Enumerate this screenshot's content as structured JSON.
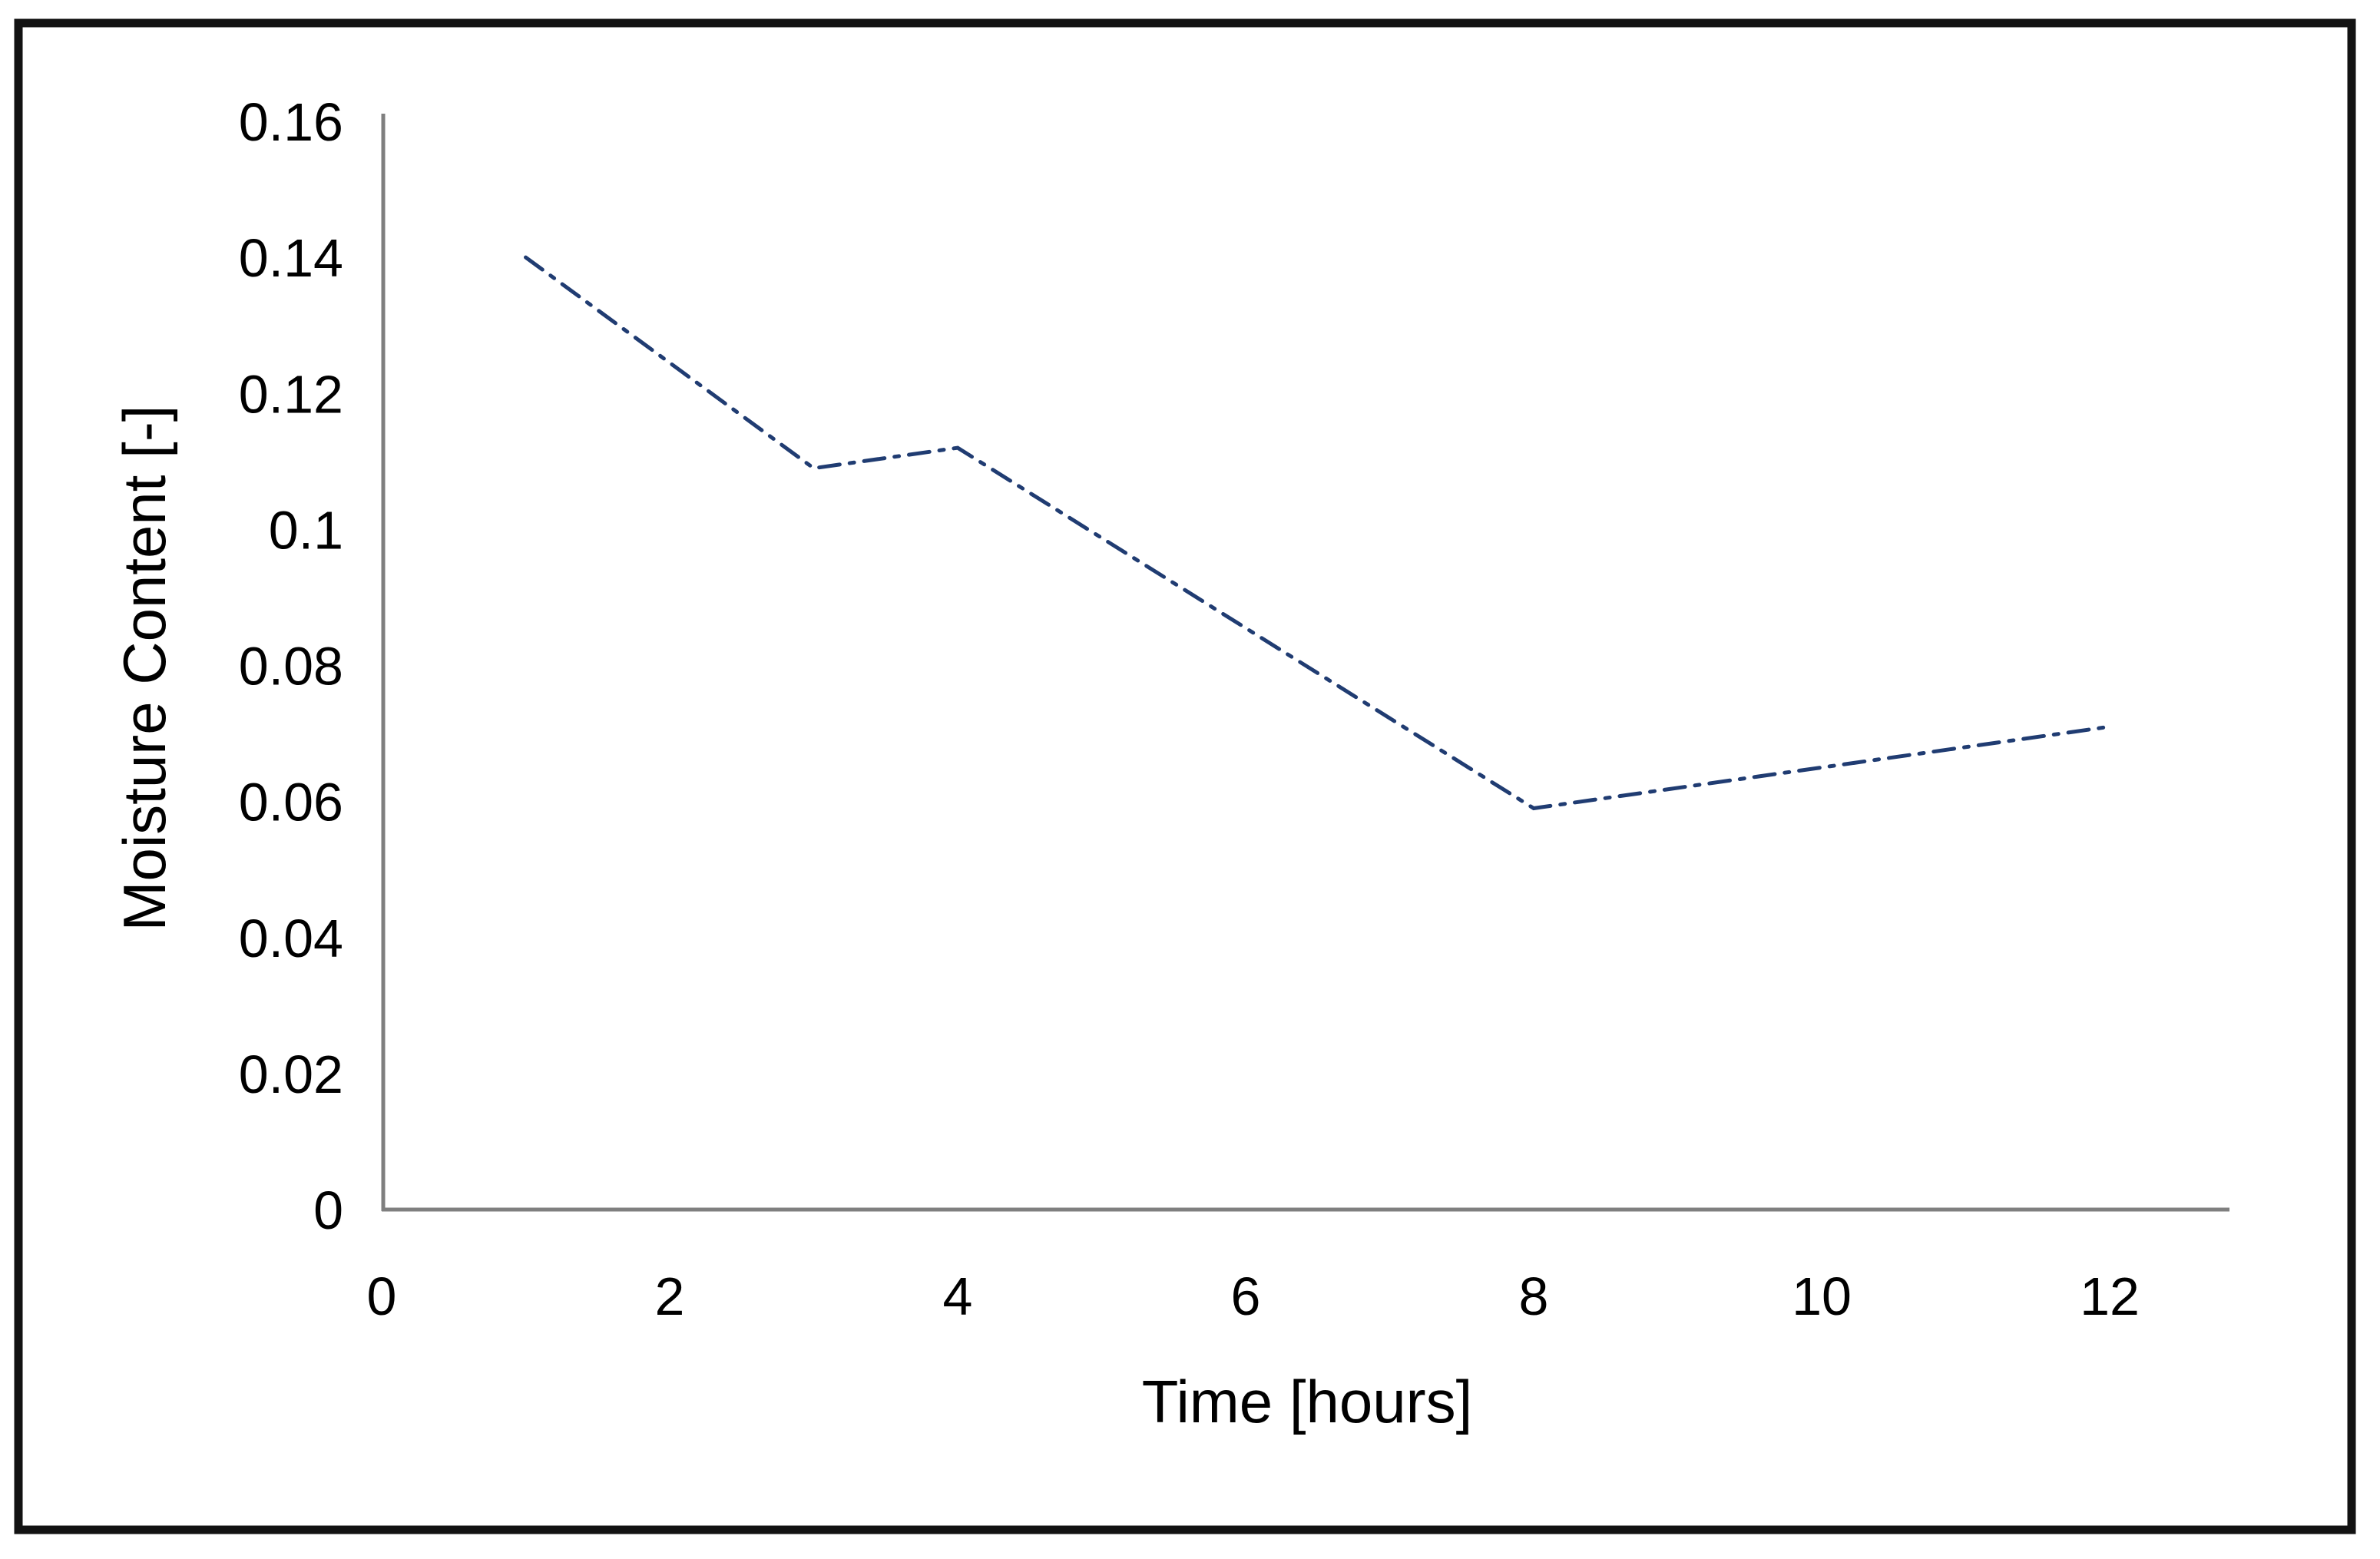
{
  "page": {
    "background_color": "#ffffff",
    "frame_color": "#121212"
  },
  "chart_data": {
    "type": "line",
    "title": "",
    "xlabel": "Time [hours]",
    "ylabel": "Moisture Content [-]",
    "xlim": [
      0,
      12.85
    ],
    "ylim": [
      0,
      0.1615
    ],
    "grid": false,
    "legend": null,
    "axis_color": "#7f7f7f",
    "text_color": "#000000",
    "x_ticks": [
      {
        "value": 0,
        "label": "0"
      },
      {
        "value": 2,
        "label": "2"
      },
      {
        "value": 4,
        "label": "4"
      },
      {
        "value": 6,
        "label": "6"
      },
      {
        "value": 8,
        "label": "8"
      },
      {
        "value": 10,
        "label": "10"
      },
      {
        "value": 12,
        "label": "12"
      }
    ],
    "y_ticks": [
      {
        "value": 0,
        "label": "0"
      },
      {
        "value": 0.02,
        "label": "0.02"
      },
      {
        "value": 0.04,
        "label": "0.04"
      },
      {
        "value": 0.06,
        "label": "0.06"
      },
      {
        "value": 0.08,
        "label": "0.08"
      },
      {
        "value": 0.1,
        "label": "0.1"
      },
      {
        "value": 0.12,
        "label": "0.12"
      },
      {
        "value": 0.14,
        "label": "0.14"
      },
      {
        "value": 0.16,
        "label": "0.16"
      }
    ],
    "series": [
      {
        "name": "Moisture Content",
        "line_style": "dash-dot",
        "color": "#203c72",
        "points": [
          [
            1,
            0.14
          ],
          [
            3,
            0.109
          ],
          [
            4,
            0.112
          ],
          [
            8,
            0.059
          ],
          [
            12,
            0.071
          ]
        ]
      }
    ]
  }
}
